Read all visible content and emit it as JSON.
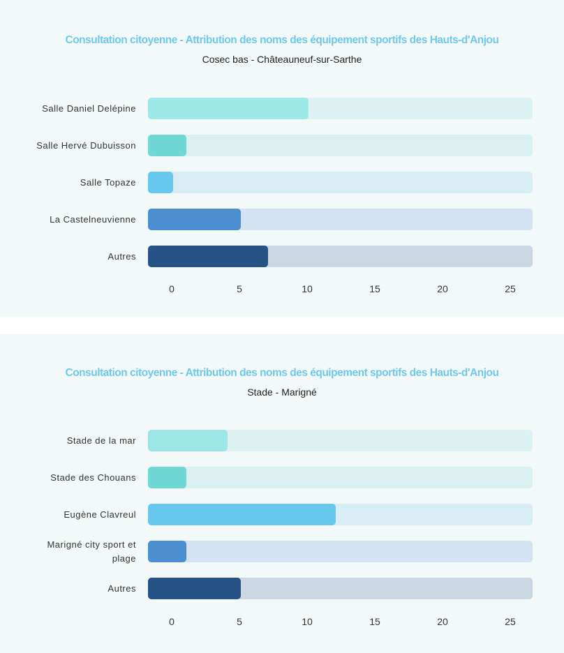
{
  "chart_data": [
    {
      "type": "bar",
      "orientation": "horizontal",
      "title": "Consultation citoyenne - Attribution des noms des équipement sportifs des Hauts-d'Anjou",
      "subtitle": "Cosec bas - Châteauneuf-sur-Sarthe",
      "categories": [
        "Salle Daniel Delépine",
        "Salle Hervé Dubuisson",
        "Salle Topaze",
        "La Castelneuvienne",
        "Autres"
      ],
      "values": [
        10,
        1,
        0,
        5,
        7
      ],
      "xlim": [
        0,
        27
      ],
      "xticks": [
        "0",
        "5",
        "10",
        "15",
        "20",
        "25"
      ],
      "bar_colors": [
        "#9ee8e6",
        "#6fd8d4",
        "#66c8ec",
        "#4b8fd0",
        "#265285"
      ],
      "track_colors": [
        "#ddf3f3",
        "#dbf0f1",
        "#d9edf5",
        "#d3e3f1",
        "#cbd7e3"
      ]
    },
    {
      "type": "bar",
      "orientation": "horizontal",
      "title": "Consultation citoyenne - Attribution des noms des équipement sportifs des Hauts-d'Anjou",
      "subtitle": "Stade - Marigné",
      "categories": [
        "Stade de la mar",
        "Stade des Chouans",
        "Eugène Clavreul",
        "Marigné city sport et plage",
        "Autres"
      ],
      "values": [
        4,
        1,
        12,
        1,
        5
      ],
      "xlim": [
        0,
        27
      ],
      "xticks": [
        "0",
        "5",
        "10",
        "15",
        "20",
        "25"
      ],
      "bar_colors": [
        "#9ee6e6",
        "#6fd8d4",
        "#66c8ec",
        "#4b8fd0",
        "#265285"
      ],
      "track_colors": [
        "#ddf3f3",
        "#dbf0f1",
        "#d9edf5",
        "#d3e3f1",
        "#cbd7e3"
      ]
    }
  ]
}
